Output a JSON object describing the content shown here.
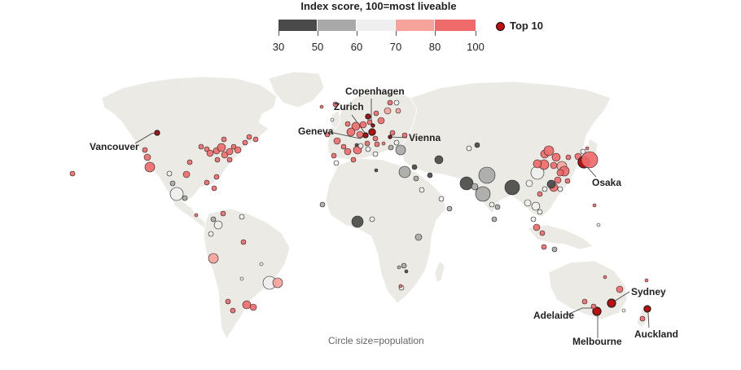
{
  "legend": {
    "title": "Index score, 100=most liveable",
    "ticks": [
      "30",
      "50",
      "60",
      "70",
      "80",
      "100"
    ],
    "segments": [
      {
        "from": 30,
        "to": 50,
        "color": "#4a4a4a"
      },
      {
        "from": 50,
        "to": 60,
        "color": "#a9a9a9"
      },
      {
        "from": 60,
        "to": 70,
        "color": "#efefef"
      },
      {
        "from": 70,
        "to": 80,
        "color": "#f5a39b"
      },
      {
        "from": 80,
        "to": 100,
        "color": "#ef6b6b"
      }
    ],
    "top10_label": "Top 10",
    "top10_color": "#c00d0d"
  },
  "size_note": "Circle size=population",
  "colors": {
    "land": "#eceae4",
    "border": "#ffffff",
    "score_30_50": "#4a4a4a",
    "score_50_60": "#a9a9a9",
    "score_60_70": "#efefef",
    "score_70_80": "#f5a39b",
    "score_80_100": "#ef6b6b",
    "top10": "#c00d0d"
  },
  "labeled_cities": [
    {
      "name": "Vancouver"
    },
    {
      "name": "Copenhagen"
    },
    {
      "name": "Zurich"
    },
    {
      "name": "Geneva"
    },
    {
      "name": "Vienna"
    },
    {
      "name": "Osaka"
    },
    {
      "name": "Sydney"
    },
    {
      "name": "Adelaide"
    },
    {
      "name": "Melbourne"
    },
    {
      "name": "Auckland"
    }
  ]
}
